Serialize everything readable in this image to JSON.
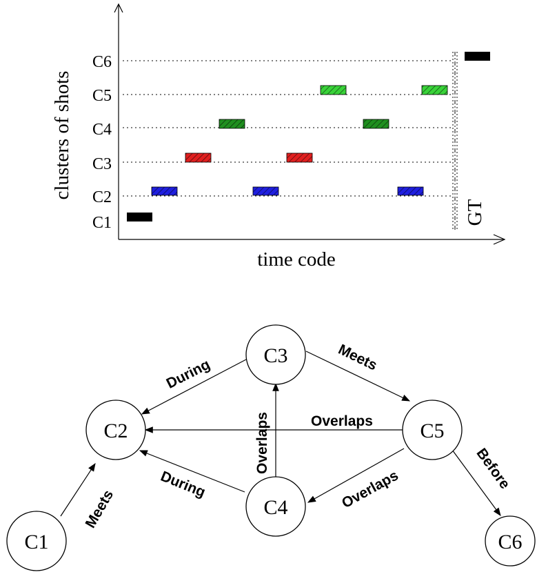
{
  "chart": {
    "y_axis_label": "clusters of shots",
    "x_axis_label": "time code",
    "ground_truth_label": "GT",
    "rows": [
      "C1",
      "C2",
      "C3",
      "C4",
      "C5",
      "C6"
    ],
    "row_colors": {
      "C1": "#000000",
      "C2": "#1f1fe0",
      "C3": "#e01f1f",
      "C4": "#1f8f1f",
      "C5": "#39d339",
      "C6": "#000000"
    }
  },
  "graph": {
    "nodes": [
      {
        "id": "C1",
        "label": "C1"
      },
      {
        "id": "C2",
        "label": "C2"
      },
      {
        "id": "C3",
        "label": "C3"
      },
      {
        "id": "C4",
        "label": "C4"
      },
      {
        "id": "C5",
        "label": "C5"
      },
      {
        "id": "C6",
        "label": "C6"
      }
    ],
    "edges": [
      {
        "from": "C3",
        "to": "C2",
        "label": "During"
      },
      {
        "from": "C3",
        "to": "C5",
        "label": "Meets"
      },
      {
        "from": "C5",
        "to": "C2",
        "label": "Overlaps"
      },
      {
        "from": "C4",
        "to": "C3",
        "label": "Overlaps"
      },
      {
        "from": "C4",
        "to": "C2",
        "label": "During"
      },
      {
        "from": "C5",
        "to": "C4",
        "label": "Overlaps"
      },
      {
        "from": "C5",
        "to": "C6",
        "label": "Before"
      },
      {
        "from": "C1",
        "to": "C2",
        "label": "Meets"
      }
    ]
  }
}
